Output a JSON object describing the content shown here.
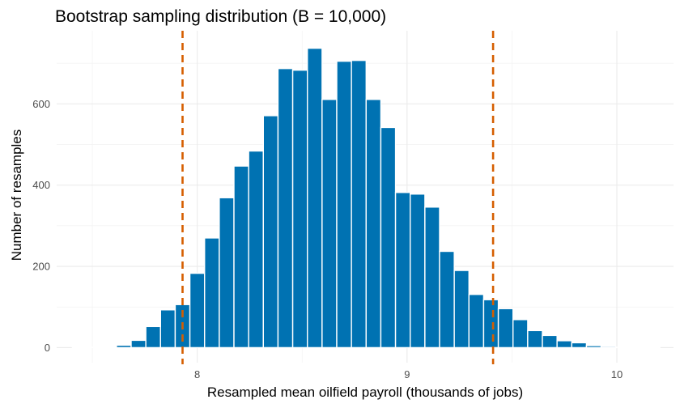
{
  "chart_data": {
    "type": "bar",
    "title": "Bootstrap sampling distribution (B = 10,000)",
    "xlabel": "Resampled mean oilfield payroll (thousands of jobs)",
    "ylabel": "Number of resamples",
    "xlim": [
      7.33,
      10.27
    ],
    "ylim": [
      -37,
      780
    ],
    "x_ticks": [
      8,
      9,
      10
    ],
    "x_tick_labels": [
      "8",
      "9",
      "10"
    ],
    "y_ticks": [
      0,
      200,
      400,
      600
    ],
    "y_tick_labels": [
      "0",
      "200",
      "400",
      "600"
    ],
    "bin_width": 0.07,
    "bin_centers": [
      7.44,
      7.51,
      7.58,
      7.65,
      7.72,
      7.79,
      7.86,
      7.93,
      8.0,
      8.07,
      8.14,
      8.21,
      8.28,
      8.35,
      8.42,
      8.49,
      8.56,
      8.63,
      8.7,
      8.77,
      8.84,
      8.91,
      8.98,
      9.05,
      9.12,
      9.19,
      9.26,
      9.33,
      9.4,
      9.47,
      9.54,
      9.61,
      9.68,
      9.75,
      9.82,
      9.89,
      9.96,
      10.03,
      10.1,
      10.17
    ],
    "counts": [
      1,
      1,
      2,
      6,
      18,
      52,
      93,
      106,
      183,
      270,
      369,
      447,
      484,
      571,
      687,
      683,
      737,
      611,
      705,
      707,
      611,
      542,
      382,
      378,
      346,
      237,
      190,
      131,
      118,
      96,
      69,
      42,
      30,
      17,
      12,
      5,
      3,
      1,
      1,
      1
    ],
    "ci_lines": [
      7.93,
      9.41
    ],
    "bar_color": "#0072b2",
    "ci_line_color": "#d55e00",
    "grid": true
  }
}
